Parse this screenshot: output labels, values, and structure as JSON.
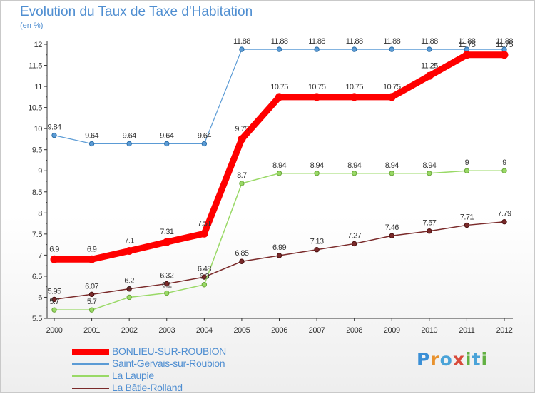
{
  "header": {
    "title": "Evolution du Taux de Taxe d'Habitation",
    "subtitle": "(en %)"
  },
  "logo": {
    "text": "Proxiti",
    "letter_colors": [
      "#3a8fd6",
      "#e8922e",
      "#4aa3d8",
      "#d84a3a",
      "#62b042",
      "#4aa3d8",
      "#62b042"
    ]
  },
  "chart_data": {
    "type": "line",
    "x": [
      "2000",
      "2001",
      "2002",
      "2003",
      "2004",
      "2005",
      "2006",
      "2007",
      "2008",
      "2009",
      "2010",
      "2011",
      "2012"
    ],
    "ylim": [
      5.5,
      12
    ],
    "yticks": [
      "5.5",
      "6",
      "6.5",
      "7",
      "7.5",
      "8",
      "8.5",
      "9",
      "9.5",
      "10",
      "10.5",
      "11",
      "11.5",
      "12"
    ],
    "grid": false,
    "legend_position": "bottom-left",
    "series": [
      {
        "name": "BONLIEU-SUR-ROUBION",
        "values": [
          6.9,
          6.9,
          7.1,
          7.31,
          7.51,
          9.75,
          10.75,
          10.75,
          10.75,
          10.75,
          11.25,
          11.75,
          11.75
        ],
        "labels": [
          "6.9",
          "6.9",
          "7.1",
          "7.31",
          "7.51",
          "9.75",
          "10.75",
          "10.75",
          "10.75",
          "10.75",
          "11.25",
          "11.75",
          "11.75"
        ],
        "color": "#ff0000"
      },
      {
        "name": "Saint-Gervais-sur-Roubion",
        "values": [
          9.84,
          9.64,
          9.64,
          9.64,
          9.64,
          11.88,
          11.88,
          11.88,
          11.88,
          11.88,
          11.88,
          11.88,
          11.88
        ],
        "labels": [
          "9.84",
          "9.64",
          "9.64",
          "9.64",
          "9.64",
          "11.88",
          "11.88",
          "11.88",
          "11.88",
          "11.88",
          "11.88",
          "11.88",
          "11.88"
        ],
        "color": "#5b9bd5"
      },
      {
        "name": "La Laupie",
        "values": [
          5.7,
          5.7,
          6.0,
          6.1,
          6.3,
          8.7,
          8.94,
          8.94,
          8.94,
          8.94,
          8.94,
          9.0,
          9.0
        ],
        "labels": [
          "5.7",
          "5.7",
          "6",
          "6.1",
          "6.3",
          "8.7",
          "8.94",
          "8.94",
          "8.94",
          "8.94",
          "8.94",
          "9",
          "9"
        ],
        "color": "#99d966"
      },
      {
        "name": "La Bâtie-Rolland",
        "values": [
          5.95,
          6.07,
          6.2,
          6.32,
          6.48,
          6.85,
          6.99,
          7.13,
          7.27,
          7.46,
          7.57,
          7.71,
          7.79
        ],
        "labels": [
          "5.95",
          "6.07",
          "6.2",
          "6.32",
          "6.48",
          "6.85",
          "6.99",
          "7.13",
          "7.27",
          "7.46",
          "7.57",
          "7.71",
          "7.79"
        ],
        "color": "#7a2a2a"
      }
    ]
  }
}
